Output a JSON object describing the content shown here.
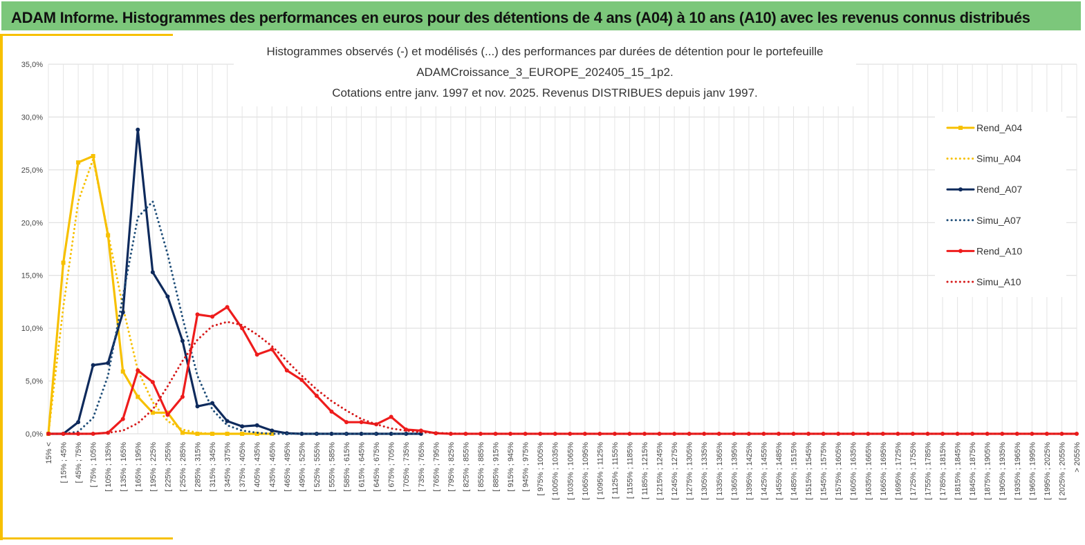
{
  "header": {
    "title": "ADAM Informe. Histogrammes des performances en euros pour des détentions de 4 ans (A04) à 10 ans (A10) avec les revenus connus distribués"
  },
  "chart_data": {
    "type": "line",
    "title": [
      "Histogrammes observés (-) et modélisés (...) des performances par durées de détention pour le portefeuille",
      "ADAMCroissance_3_EUROPE_202405_15_1p2.",
      "Cotations entre janv. 1997 et nov. 2025. Revenus DISTRIBUES depuis janv 1997."
    ],
    "categories": [
      "15% <",
      "[ 15% ; 45%",
      "[ 45% ; 75%",
      "[ 75% ; 105%",
      "[ 105% ; 135%",
      "[ 135% ; 165%",
      "[ 165% ; 195%",
      "[ 195% ; 225%",
      "[ 225% ; 255%",
      "[ 255% ; 285%",
      "[ 285% ; 315%",
      "[ 315% ; 345%",
      "[ 345% ; 375%",
      "[ 375% ; 405%",
      "[ 405% ; 435%",
      "[ 435% ; 465%",
      "[ 465% ; 495%",
      "[ 495% ; 525%",
      "[ 525% ; 555%",
      "[ 555% ; 585%",
      "[ 585% ; 615%",
      "[ 615% ; 645%",
      "[ 645% ; 675%",
      "[ 675% ; 705%",
      "[ 705% ; 735%",
      "[ 735% ; 765%",
      "[ 765% ; 795%",
      "[ 795% ; 825%",
      "[ 825% ; 855%",
      "[ 855% ; 885%",
      "[ 885% ; 915%",
      "[ 915% ; 945%",
      "[ 945% ; 975%",
      "[ 975% ; 1005%",
      "[ 1005% ; 1035%",
      "[ 1035% ; 1065%",
      "[ 1065% ; 1095%",
      "[ 1095% ; 1125%",
      "[ 1125% ; 1155%",
      "[ 1155% ; 1185%",
      "[ 1185% ; 1215%",
      "[ 1215% ; 1245%",
      "[ 1245% ; 1275%",
      "[ 1275% ; 1305%",
      "[ 1305% ; 1335%",
      "[ 1335% ; 1365%",
      "[ 1365% ; 1395%",
      "[ 1395% ; 1425%",
      "[ 1425% ; 1455%",
      "[ 1455% ; 1485%",
      "[ 1485% ; 1515%",
      "[ 1515% ; 1545%",
      "[ 1545% ; 1575%",
      "[ 1575% ; 1605%",
      "[ 1605% ; 1635%",
      "[ 1635% ; 1665%",
      "[ 1665% ; 1695%",
      "[ 1695% ; 1725%",
      "[ 1725% ; 1755%",
      "[ 1755% ; 1785%",
      "[ 1785% ; 1815%",
      "[ 1815% ; 1845%",
      "[ 1845% ; 1875%",
      "[ 1875% ; 1905%",
      "[ 1905% ; 1935%",
      "[ 1935% ; 1965%",
      "[ 1965% ; 1995%",
      "[ 1995% ; 2025%",
      "[ 2025% ; 2055%",
      "> 2055%"
    ],
    "series": [
      {
        "name": "Rend_A04",
        "color": "#f7c000",
        "line_style": "solid",
        "marker": "square",
        "values": [
          0,
          16.2,
          25.7,
          26.3,
          18.8,
          5.9,
          3.5,
          2.0,
          2.0,
          0.1,
          0,
          0,
          0,
          0,
          0,
          0,
          null,
          null,
          null,
          null,
          null,
          null,
          null,
          null,
          null,
          null,
          null,
          null,
          null,
          null,
          null,
          null,
          null,
          null,
          null,
          null,
          null,
          null,
          null,
          null,
          null,
          null,
          null,
          null,
          null,
          null,
          null,
          null,
          null,
          null,
          null,
          null,
          null,
          null,
          null,
          null,
          null,
          null,
          null,
          null,
          null,
          null,
          null,
          null,
          null,
          null,
          null,
          null,
          null,
          null
        ]
      },
      {
        "name": "Simu_A04",
        "color": "#f7c000",
        "line_style": "dotted",
        "marker": "none",
        "values": [
          0,
          12,
          22,
          26,
          19,
          12,
          6,
          3,
          1.2,
          0.4,
          0.1,
          0,
          0,
          0,
          0,
          0,
          null,
          null,
          null,
          null,
          null,
          null,
          null,
          null,
          null,
          null,
          null,
          null,
          null,
          null,
          null,
          null,
          null,
          null,
          null,
          null,
          null,
          null,
          null,
          null,
          null,
          null,
          null,
          null,
          null,
          null,
          null,
          null,
          null,
          null,
          null,
          null,
          null,
          null,
          null,
          null,
          null,
          null,
          null,
          null,
          null,
          null,
          null,
          null,
          null,
          null,
          null,
          null,
          null,
          null
        ]
      },
      {
        "name": "Rend_A07",
        "color": "#0e2a5c",
        "line_style": "solid",
        "marker": "circle",
        "values": [
          0,
          0,
          1.1,
          6.5,
          6.7,
          11.5,
          28.8,
          15.3,
          13.0,
          8.8,
          2.6,
          2.9,
          1.2,
          0.7,
          0.8,
          0.3,
          0.05,
          0,
          0,
          0,
          0,
          0,
          0,
          0,
          0,
          0,
          null,
          null,
          null,
          null,
          null,
          null,
          null,
          null,
          null,
          null,
          null,
          null,
          null,
          null,
          null,
          null,
          null,
          null,
          null,
          null,
          null,
          null,
          null,
          null,
          null,
          null,
          null,
          null,
          null,
          null,
          null,
          null,
          null,
          null,
          null,
          null,
          null,
          null,
          null,
          null,
          null,
          null,
          null,
          null
        ]
      },
      {
        "name": "Simu_A07",
        "color": "#1f4e79",
        "line_style": "dotted",
        "marker": "none",
        "values": [
          0,
          0,
          0.2,
          1.5,
          5.5,
          13,
          20.5,
          22,
          17,
          11,
          5.5,
          2.3,
          0.8,
          0.3,
          0.1,
          0,
          0,
          0,
          0,
          0,
          0,
          0,
          0,
          0,
          0,
          0,
          null,
          null,
          null,
          null,
          null,
          null,
          null,
          null,
          null,
          null,
          null,
          null,
          null,
          null,
          null,
          null,
          null,
          null,
          null,
          null,
          null,
          null,
          null,
          null,
          null,
          null,
          null,
          null,
          null,
          null,
          null,
          null,
          null,
          null,
          null,
          null,
          null,
          null,
          null,
          null,
          null,
          null,
          null,
          null
        ]
      },
      {
        "name": "Rend_A10",
        "color": "#ee1c1c",
        "line_style": "solid",
        "marker": "circle",
        "values": [
          0,
          0,
          0,
          0,
          0.1,
          1.4,
          6.0,
          4.9,
          1.8,
          3.5,
          11.3,
          11.1,
          12.0,
          10.0,
          7.5,
          8.0,
          6.0,
          5.1,
          3.6,
          2.1,
          1.1,
          1.1,
          0.9,
          1.6,
          0.4,
          0.3,
          0.05,
          0,
          0,
          0,
          0,
          0,
          0,
          0,
          0,
          0,
          0,
          0,
          0,
          0,
          0,
          0,
          0,
          0,
          0,
          0,
          0,
          0,
          0,
          0,
          0,
          0,
          0,
          0,
          0,
          0,
          0,
          0,
          0,
          0,
          0,
          0,
          0,
          0,
          0,
          0,
          0,
          0,
          0,
          0
        ]
      },
      {
        "name": "Simu_A10",
        "color": "#d61a1a",
        "line_style": "dotted",
        "marker": "none",
        "values": [
          0,
          0,
          0,
          0,
          0.1,
          0.3,
          1.0,
          2.3,
          4.5,
          6.9,
          8.9,
          10.2,
          10.6,
          10.3,
          9.4,
          8.3,
          6.9,
          5.5,
          4.2,
          3.1,
          2.2,
          1.4,
          0.9,
          0.5,
          0.3,
          0.15,
          0.08,
          0.04,
          0,
          0,
          0,
          0,
          0,
          0,
          0,
          0,
          0,
          0,
          0,
          0,
          0,
          0,
          0,
          0,
          0,
          0,
          0,
          0,
          0,
          0,
          0,
          0,
          0,
          0,
          0,
          0,
          0,
          0,
          0,
          0,
          0,
          0,
          0,
          0,
          0,
          0,
          0,
          0,
          0,
          0
        ]
      }
    ],
    "ylim": [
      0,
      35
    ],
    "yticks": [
      {
        "value": 0,
        "label": "0,0%"
      },
      {
        "value": 5,
        "label": "5,0%"
      },
      {
        "value": 10,
        "label": "10,0%"
      },
      {
        "value": 15,
        "label": "15,0%"
      },
      {
        "value": 20,
        "label": "20,0%"
      },
      {
        "value": 25,
        "label": "25,0%"
      },
      {
        "value": 30,
        "label": "30,0%"
      },
      {
        "value": 35,
        "label": "35,0%"
      }
    ],
    "grid": true,
    "legend": "right"
  }
}
